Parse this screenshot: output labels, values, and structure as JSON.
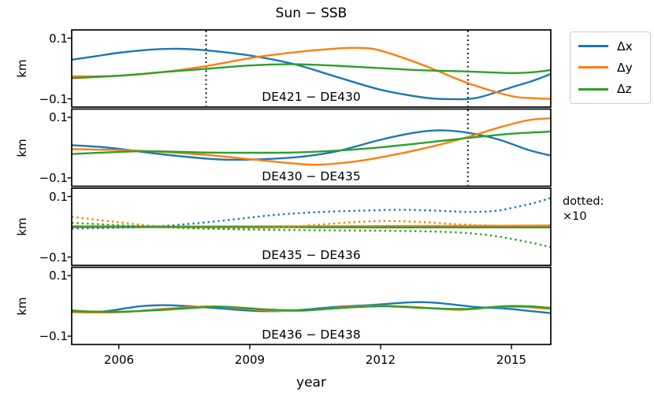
{
  "title": "Sun − SSB",
  "axis": {
    "xlabel": "year",
    "ylabel": "km",
    "xticks": [
      "2006",
      "2009",
      "2012",
      "2015"
    ],
    "xtick_years": [
      2006,
      2009,
      2012,
      2015
    ],
    "ytick_top": "0.1",
    "ytick_bottom": "−0.1"
  },
  "legend": {
    "items": [
      {
        "label": "Δx",
        "color": "#1f77b4"
      },
      {
        "label": "Δy",
        "color": "#ff7f0e"
      },
      {
        "label": "Δz",
        "color": "#2ca02c"
      }
    ]
  },
  "annotation": {
    "line1": "dotted:",
    "line2": "×10"
  },
  "chart_data": {
    "type": "line",
    "title": "Sun − SSB",
    "xlabel": "year",
    "ylabel": "km",
    "xlim": [
      2004.92,
      2015.9
    ],
    "ylim": [
      -0.1273,
      0.1273
    ],
    "yticks": [
      0.1,
      -0.1
    ],
    "xticks": [
      2006,
      2009,
      2012,
      2015
    ],
    "grid": false,
    "legend_position": "upper right outside",
    "units": "km",
    "dotted_note": "dotted curves plotted at ×10 scale (panel DE435 − DE436)",
    "panels": [
      {
        "label": "DE421 − DE430",
        "vlines": [
          2008,
          2014
        ],
        "series": [
          {
            "name": "Δx",
            "color": "#1f77b4",
            "style": "solid",
            "points": [
              [
                2004.92,
                0.029
              ],
              [
                2005.5,
                0.041
              ],
              [
                2006,
                0.052
              ],
              [
                2006.8,
                0.063
              ],
              [
                2007.4,
                0.065
              ],
              [
                2008,
                0.06
              ],
              [
                2009,
                0.043
              ],
              [
                2010,
                0.015
              ],
              [
                2011,
                -0.028
              ],
              [
                2012,
                -0.07
              ],
              [
                2013,
                -0.096
              ],
              [
                2013.6,
                -0.101
              ],
              [
                2014.2,
                -0.097
              ],
              [
                2015,
                -0.062
              ],
              [
                2015.5,
                -0.04
              ],
              [
                2015.9,
                -0.018
              ]
            ]
          },
          {
            "name": "Δy",
            "color": "#ff7f0e",
            "style": "solid",
            "points": [
              [
                2004.92,
                -0.026
              ],
              [
                2006,
                -0.024
              ],
              [
                2007,
                -0.012
              ],
              [
                2008,
                0.008
              ],
              [
                2009,
                0.034
              ],
              [
                2010,
                0.053
              ],
              [
                2011,
                0.066
              ],
              [
                2011.5,
                0.068
              ],
              [
                2012,
                0.059
              ],
              [
                2013,
                0.01
              ],
              [
                2014,
                -0.048
              ],
              [
                2015,
                -0.091
              ],
              [
                2015.5,
                -0.098
              ],
              [
                2015.9,
                -0.1
              ]
            ]
          },
          {
            "name": "Δz",
            "color": "#2ca02c",
            "style": "solid",
            "points": [
              [
                2004.92,
                -0.032
              ],
              [
                2006,
                -0.024
              ],
              [
                2007,
                -0.012
              ],
              [
                2008,
                -0.001
              ],
              [
                2009,
                0.01
              ],
              [
                2010,
                0.014
              ],
              [
                2011,
                0.009
              ],
              [
                2012,
                0.001
              ],
              [
                2013,
                -0.006
              ],
              [
                2014,
                -0.01
              ],
              [
                2015,
                -0.015
              ],
              [
                2015.5,
                -0.012
              ],
              [
                2015.9,
                -0.005
              ]
            ]
          }
        ]
      },
      {
        "label": "DE430 − DE435",
        "vlines": [
          2014
        ],
        "series": [
          {
            "name": "Δx",
            "color": "#1f77b4",
            "style": "solid",
            "points": [
              [
                2004.92,
                0.008
              ],
              [
                2005.5,
                0.003
              ],
              [
                2006,
                -0.004
              ],
              [
                2007,
                -0.022
              ],
              [
                2008,
                -0.036
              ],
              [
                2008.6,
                -0.04
              ],
              [
                2009.5,
                -0.037
              ],
              [
                2010.3,
                -0.028
              ],
              [
                2011,
                -0.012
              ],
              [
                2012,
                0.026
              ],
              [
                2012.8,
                0.05
              ],
              [
                2013.4,
                0.057
              ],
              [
                2014,
                0.049
              ],
              [
                2014.7,
                0.027
              ],
              [
                2015.4,
                -0.008
              ],
              [
                2015.9,
                -0.026
              ]
            ]
          },
          {
            "name": "Δy",
            "color": "#ff7f0e",
            "style": "solid",
            "points": [
              [
                2004.92,
                -0.005
              ],
              [
                2006,
                -0.008
              ],
              [
                2007,
                -0.014
              ],
              [
                2008,
                -0.024
              ],
              [
                2009,
                -0.038
              ],
              [
                2010,
                -0.052
              ],
              [
                2010.6,
                -0.056
              ],
              [
                2011.5,
                -0.044
              ],
              [
                2012.5,
                -0.018
              ],
              [
                2013.3,
                0.008
              ],
              [
                2014,
                0.035
              ],
              [
                2014.8,
                0.07
              ],
              [
                2015.4,
                0.091
              ],
              [
                2015.9,
                0.097
              ]
            ]
          },
          {
            "name": "Δz",
            "color": "#2ca02c",
            "style": "solid",
            "points": [
              [
                2004.92,
                -0.021
              ],
              [
                2006,
                -0.014
              ],
              [
                2006.7,
                -0.012
              ],
              [
                2008,
                -0.016
              ],
              [
                2009,
                -0.017
              ],
              [
                2010,
                -0.016
              ],
              [
                2011,
                -0.01
              ],
              [
                2012,
                0.001
              ],
              [
                2013,
                0.016
              ],
              [
                2014,
                0.032
              ],
              [
                2015,
                0.046
              ],
              [
                2015.9,
                0.053
              ]
            ]
          }
        ]
      },
      {
        "label": "DE435 − DE436",
        "vlines": [],
        "series": [
          {
            "name": "Δx",
            "color": "#1f77b4",
            "style": "solid",
            "points": [
              [
                2004.92,
                0.0
              ],
              [
                2008,
                0.0
              ],
              [
                2012,
                0.001
              ],
              [
                2015.9,
                0.001
              ]
            ]
          },
          {
            "name": "Δy",
            "color": "#ff7f0e",
            "style": "solid",
            "points": [
              [
                2004.92,
                0.002
              ],
              [
                2008,
                0.001
              ],
              [
                2012,
                0.002
              ],
              [
                2014,
                0.003
              ],
              [
                2015.9,
                0.004
              ]
            ]
          },
          {
            "name": "Δz",
            "color": "#2ca02c",
            "style": "solid",
            "points": [
              [
                2004.92,
                -0.001
              ],
              [
                2008,
                -0.001
              ],
              [
                2012,
                -0.002
              ],
              [
                2015.9,
                -0.002
              ]
            ]
          },
          {
            "name": "Δx (×10)",
            "color": "#1f77b4",
            "style": "dotted",
            "points": [
              [
                2004.92,
                -0.006
              ],
              [
                2006,
                -0.003
              ],
              [
                2006.7,
                0.0
              ],
              [
                2007.5,
                0.008
              ],
              [
                2008.5,
                0.022
              ],
              [
                2009.5,
                0.038
              ],
              [
                2010.5,
                0.048
              ],
              [
                2011.5,
                0.053
              ],
              [
                2012.5,
                0.056
              ],
              [
                2013.3,
                0.053
              ],
              [
                2014,
                0.049
              ],
              [
                2014.6,
                0.052
              ],
              [
                2015,
                0.062
              ],
              [
                2015.5,
                0.078
              ],
              [
                2015.9,
                0.095
              ]
            ]
          },
          {
            "name": "Δy (×10)",
            "color": "#ff7f0e",
            "style": "dotted",
            "points": [
              [
                2004.92,
                0.033
              ],
              [
                2005.8,
                0.018
              ],
              [
                2006.7,
                0.004
              ],
              [
                2007.5,
                -0.004
              ],
              [
                2008.5,
                -0.007
              ],
              [
                2009.5,
                -0.004
              ],
              [
                2010.5,
                0.006
              ],
              [
                2011.5,
                0.016
              ],
              [
                2012.2,
                0.019
              ],
              [
                2013,
                0.015
              ],
              [
                2013.8,
                0.008
              ],
              [
                2014.5,
                0.004
              ],
              [
                2015.2,
                0.003
              ],
              [
                2015.9,
                0.004
              ]
            ]
          },
          {
            "name": "Δz (×10)",
            "color": "#2ca02c",
            "style": "dotted",
            "points": [
              [
                2004.92,
                0.013
              ],
              [
                2006,
                0.005
              ],
              [
                2006.7,
                0.0
              ],
              [
                2008,
                -0.006
              ],
              [
                2009,
                -0.009
              ],
              [
                2010,
                -0.011
              ],
              [
                2011,
                -0.012
              ],
              [
                2012,
                -0.013
              ],
              [
                2013,
                -0.015
              ],
              [
                2013.8,
                -0.019
              ],
              [
                2014.5,
                -0.028
              ],
              [
                2015,
                -0.04
              ],
              [
                2015.5,
                -0.054
              ],
              [
                2015.9,
                -0.067
              ]
            ]
          }
        ]
      },
      {
        "label": "DE436 − DE438",
        "vlines": [],
        "series": [
          {
            "name": "Δx",
            "color": "#1f77b4",
            "style": "solid",
            "points": [
              [
                2004.92,
                -0.015
              ],
              [
                2005.6,
                -0.019
              ],
              [
                2006.5,
                -0.001
              ],
              [
                2007.2,
                0.002
              ],
              [
                2008.2,
                -0.007
              ],
              [
                2009.2,
                -0.017
              ],
              [
                2010,
                -0.015
              ],
              [
                2011,
                -0.003
              ],
              [
                2011.8,
                0.003
              ],
              [
                2012.7,
                0.012
              ],
              [
                2013.3,
                0.01
              ],
              [
                2014.2,
                -0.004
              ],
              [
                2014.8,
                -0.008
              ],
              [
                2015.3,
                -0.015
              ],
              [
                2015.9,
                -0.024
              ]
            ]
          },
          {
            "name": "Δy",
            "color": "#ff7f0e",
            "style": "solid",
            "points": [
              [
                2004.92,
                -0.021
              ],
              [
                2006,
                -0.021
              ],
              [
                2007,
                -0.01
              ],
              [
                2007.8,
                -0.003
              ],
              [
                2008.3,
                -0.002
              ],
              [
                2009.3,
                -0.014
              ],
              [
                2010.2,
                -0.016
              ],
              [
                2011.2,
                -0.004
              ],
              [
                2012,
                0.0
              ],
              [
                2012.8,
                -0.004
              ],
              [
                2013.8,
                -0.013
              ],
              [
                2014.6,
                -0.004
              ],
              [
                2015.2,
                -0.003
              ],
              [
                2015.9,
                -0.01
              ]
            ]
          },
          {
            "name": "Δz",
            "color": "#2ca02c",
            "style": "solid",
            "points": [
              [
                2004.92,
                -0.017
              ],
              [
                2006,
                -0.019
              ],
              [
                2007,
                -0.013
              ],
              [
                2008,
                -0.004
              ],
              [
                2008.5,
                -0.003
              ],
              [
                2009.4,
                -0.012
              ],
              [
                2010.3,
                -0.014
              ],
              [
                2011.3,
                -0.005
              ],
              [
                2012.1,
                -0.001
              ],
              [
                2013,
                -0.007
              ],
              [
                2014,
                -0.01
              ],
              [
                2014.8,
                -0.001
              ],
              [
                2015.4,
                -0.001
              ],
              [
                2015.9,
                -0.007
              ]
            ]
          }
        ]
      }
    ]
  }
}
